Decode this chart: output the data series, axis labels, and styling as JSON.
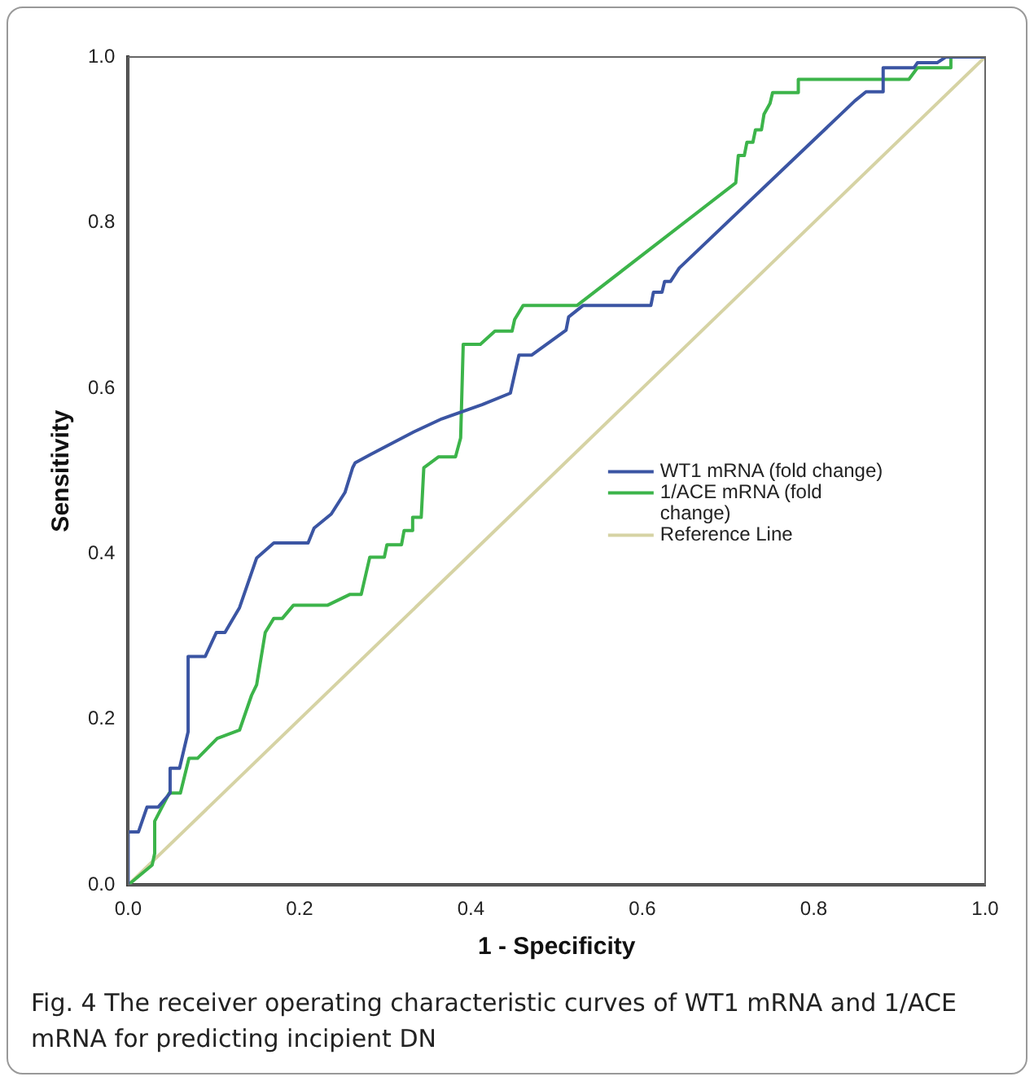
{
  "chart_data": {
    "type": "line",
    "xlabel": "1 - Specificity",
    "ylabel": "Sensitivity",
    "xlim": [
      0,
      1
    ],
    "ylim": [
      0,
      1
    ],
    "xticks": [
      {
        "value": 0,
        "label": "0.0"
      },
      {
        "value": 0.2,
        "label": "0.2"
      },
      {
        "value": 0.4,
        "label": "0.4"
      },
      {
        "value": 0.6,
        "label": "0.6"
      },
      {
        "value": 0.8,
        "label": "0.8"
      },
      {
        "value": 1,
        "label": "1.0"
      }
    ],
    "yticks": [
      {
        "value": 0,
        "label": "0.0"
      },
      {
        "value": 0.2,
        "label": "0.2"
      },
      {
        "value": 0.4,
        "label": "0.4"
      },
      {
        "value": 0.6,
        "label": "0.6"
      },
      {
        "value": 0.8,
        "label": "0.8"
      },
      {
        "value": 1,
        "label": "1.0"
      }
    ],
    "grid": false,
    "legend": "right",
    "marker": "none",
    "line_style": "solid",
    "annotations": [
      "Fig. 4 The receiver operating characteristic curves of WT1 mRNA and 1/ACE mRNA for predicting incipient DN"
    ],
    "series": [
      {
        "name": "WT1 mRNA (fold change)",
        "color": "#3b55a3",
        "x": [
          0,
          0,
          0.012,
          0.022,
          0.035,
          0.049,
          0.049,
          0.06,
          0.07,
          0.07,
          0.09,
          0.103,
          0.113,
          0.13,
          0.15,
          0.17,
          0.21,
          0.217,
          0.237,
          0.253,
          0.262,
          0.265,
          0.283,
          0.333,
          0.366,
          0.413,
          0.446,
          0.456,
          0.471,
          0.511,
          0.514,
          0.531,
          0.61,
          0.613,
          0.623,
          0.626,
          0.633,
          0.643,
          0.848,
          0.861,
          0.881,
          0.881,
          0.917,
          0.921,
          0.944,
          0.954,
          1
        ],
        "values": [
          0,
          0.064,
          0.064,
          0.094,
          0.094,
          0.111,
          0.141,
          0.141,
          0.185,
          0.276,
          0.276,
          0.305,
          0.305,
          0.335,
          0.395,
          0.413,
          0.413,
          0.431,
          0.448,
          0.474,
          0.504,
          0.51,
          0.52,
          0.547,
          0.563,
          0.58,
          0.594,
          0.64,
          0.64,
          0.67,
          0.686,
          0.7,
          0.7,
          0.716,
          0.716,
          0.729,
          0.729,
          0.745,
          0.947,
          0.958,
          0.958,
          0.987,
          0.987,
          0.993,
          0.993,
          1,
          1
        ]
      },
      {
        "name": "1/ACE mRNA (fold change)",
        "color": "#3cb44a",
        "x": [
          0,
          0.028,
          0.031,
          0.031,
          0.048,
          0.061,
          0.071,
          0.081,
          0.104,
          0.13,
          0.144,
          0.15,
          0.16,
          0.17,
          0.18,
          0.193,
          0.233,
          0.259,
          0.272,
          0.282,
          0.299,
          0.302,
          0.319,
          0.322,
          0.332,
          0.332,
          0.342,
          0.345,
          0.362,
          0.382,
          0.388,
          0.391,
          0.411,
          0.428,
          0.448,
          0.451,
          0.461,
          0.524,
          0.709,
          0.712,
          0.719,
          0.722,
          0.729,
          0.732,
          0.739,
          0.742,
          0.749,
          0.752,
          0.782,
          0.782,
          0.911,
          0.921,
          0.96,
          0.96,
          1
        ],
        "values": [
          0,
          0.024,
          0.038,
          0.077,
          0.111,
          0.111,
          0.153,
          0.153,
          0.177,
          0.187,
          0.229,
          0.242,
          0.305,
          0.322,
          0.322,
          0.338,
          0.338,
          0.351,
          0.351,
          0.396,
          0.396,
          0.411,
          0.411,
          0.428,
          0.428,
          0.444,
          0.444,
          0.504,
          0.517,
          0.517,
          0.54,
          0.653,
          0.653,
          0.669,
          0.669,
          0.683,
          0.7,
          0.7,
          0.848,
          0.881,
          0.881,
          0.897,
          0.897,
          0.912,
          0.912,
          0.931,
          0.944,
          0.957,
          0.957,
          0.973,
          0.973,
          0.987,
          0.987,
          1,
          1
        ]
      },
      {
        "name": "Reference Line",
        "color": "#d6d3a4",
        "x": [
          0,
          1
        ],
        "values": [
          0,
          1
        ]
      }
    ]
  }
}
